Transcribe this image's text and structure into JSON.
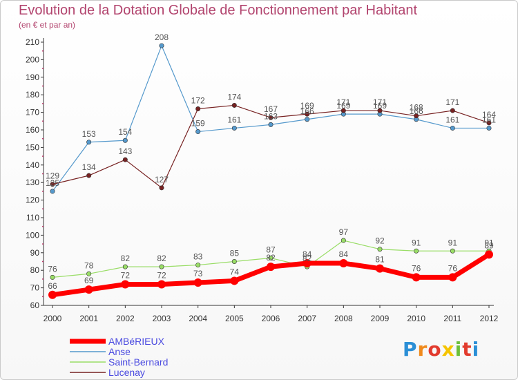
{
  "chart_data": {
    "type": "line",
    "title": "Evolution de la Dotation Globale de Fonctionnement par Habitant",
    "subtitle": "(en € et par an)",
    "xlabel": "",
    "ylabel": "",
    "x": [
      "2000",
      "2001",
      "2002",
      "2003",
      "2004",
      "2005",
      "2006",
      "2007",
      "2008",
      "2009",
      "2010",
      "2011",
      "2012"
    ],
    "ylim": [
      60,
      210
    ],
    "yticks": [
      60,
      70,
      80,
      90,
      100,
      110,
      120,
      130,
      140,
      150,
      160,
      170,
      180,
      190,
      200,
      210
    ],
    "grid": false,
    "legend_position": "bottom-left",
    "series": [
      {
        "name": "AMBéRIEUX",
        "color": "#ff0000",
        "values": [
          66,
          69,
          72,
          72,
          73,
          74,
          82,
          84,
          84,
          81,
          76,
          76,
          89
        ]
      },
      {
        "name": "Anse",
        "color": "#5599cc",
        "values": [
          125,
          153,
          154,
          208,
          159,
          161,
          163,
          166,
          169,
          169,
          166,
          161,
          161
        ]
      },
      {
        "name": "Saint-Bernard",
        "color": "#99dd66",
        "values": [
          76,
          78,
          82,
          82,
          83,
          85,
          87,
          82,
          97,
          92,
          91,
          91,
          91
        ]
      },
      {
        "name": "Lucenay",
        "color": "#772222",
        "values": [
          129,
          134,
          143,
          127,
          172,
          174,
          167,
          169,
          171,
          171,
          168,
          171,
          164
        ]
      }
    ]
  },
  "logo": {
    "letters": [
      "P",
      "r",
      "o",
      "x",
      "i",
      "t",
      "i"
    ],
    "colors": [
      "#2b8fd6",
      "#f08a1c",
      "#e23b2e",
      "#f5c400",
      "#6cbf3a",
      "#e23b2e",
      "#2b8fd6"
    ]
  }
}
